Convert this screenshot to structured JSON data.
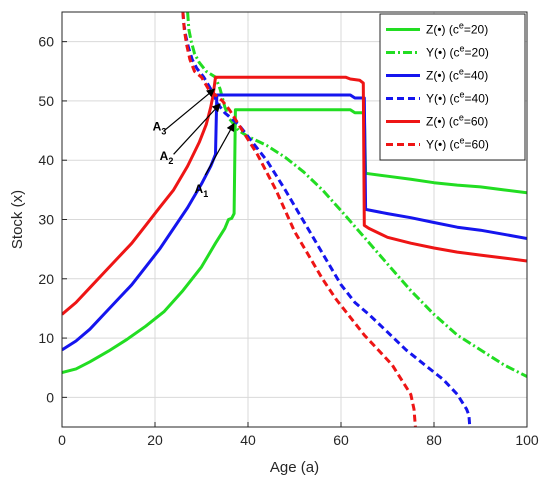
{
  "chart_data": {
    "type": "line",
    "xlabel": "Age (a)",
    "ylabel": "Stock (x)",
    "xlim": [
      0,
      100
    ],
    "ylim": [
      -5,
      65
    ],
    "xticks": [
      0,
      20,
      40,
      60,
      80,
      100
    ],
    "yticks": [
      0,
      10,
      20,
      30,
      40,
      50,
      60
    ],
    "grid": true,
    "legend_position": "top-right",
    "series": [
      {
        "legend": {
          "prefix": "Z(•) (c",
          "sup": "e",
          "suffix": "=20)"
        },
        "color": "#22dd22",
        "style": "solid",
        "points": [
          [
            0,
            4.2
          ],
          [
            3,
            4.8
          ],
          [
            6,
            6
          ],
          [
            10,
            7.8
          ],
          [
            14,
            9.8
          ],
          [
            18,
            12
          ],
          [
            22,
            14.5
          ],
          [
            26,
            18
          ],
          [
            30,
            22
          ],
          [
            33,
            26
          ],
          [
            35,
            28.5
          ],
          [
            35.8,
            30
          ],
          [
            36.5,
            30.2
          ],
          [
            37,
            31
          ],
          [
            37.3,
            48.5
          ],
          [
            45,
            48.5
          ],
          [
            55,
            48.5
          ],
          [
            62,
            48.5
          ],
          [
            63,
            48
          ],
          [
            65,
            48
          ],
          [
            65.3,
            37.8
          ],
          [
            70,
            37.3
          ],
          [
            75,
            36.8
          ],
          [
            80,
            36.2
          ],
          [
            85,
            35.8
          ],
          [
            90,
            35.5
          ],
          [
            95,
            35
          ],
          [
            100,
            34.5
          ]
        ]
      },
      {
        "legend": {
          "prefix": "Y(•) (c",
          "sup": "e",
          "suffix": "=20)"
        },
        "color": "#22dd22",
        "style": "dashdot",
        "points": [
          [
            27,
            65
          ],
          [
            27.3,
            62
          ],
          [
            27.8,
            60
          ],
          [
            28.5,
            58
          ],
          [
            29.5,
            56.5
          ],
          [
            31,
            55
          ],
          [
            33,
            54
          ],
          [
            34,
            52
          ],
          [
            35,
            49
          ],
          [
            36,
            47
          ],
          [
            37,
            46
          ],
          [
            38,
            45
          ],
          [
            40,
            44
          ],
          [
            44,
            42.5
          ],
          [
            48,
            40.5
          ],
          [
            52,
            38
          ],
          [
            56,
            35
          ],
          [
            60,
            31.5
          ],
          [
            65,
            27
          ],
          [
            70,
            22.5
          ],
          [
            75,
            18
          ],
          [
            80,
            14
          ],
          [
            85,
            10.5
          ],
          [
            90,
            8
          ],
          [
            95,
            5.5
          ],
          [
            100,
            3.5
          ]
        ]
      },
      {
        "legend": {
          "prefix": "Z(•) (c",
          "sup": "e",
          "suffix": "=40)"
        },
        "color": "#1515ee",
        "style": "solid",
        "points": [
          [
            0,
            8
          ],
          [
            3,
            9.5
          ],
          [
            6,
            11.5
          ],
          [
            9,
            14
          ],
          [
            12,
            16.5
          ],
          [
            15,
            19
          ],
          [
            18,
            22
          ],
          [
            21,
            25
          ],
          [
            24,
            28.5
          ],
          [
            27,
            32
          ],
          [
            30,
            36
          ],
          [
            32,
            39
          ],
          [
            33,
            41
          ],
          [
            33.3,
            51
          ],
          [
            45,
            51
          ],
          [
            55,
            51
          ],
          [
            62,
            51
          ],
          [
            63,
            50.5
          ],
          [
            65,
            50.5
          ],
          [
            65.3,
            31.7
          ],
          [
            70,
            31
          ],
          [
            75,
            30.3
          ],
          [
            80,
            29.5
          ],
          [
            85,
            28.7
          ],
          [
            90,
            28.2
          ],
          [
            95,
            27.5
          ],
          [
            100,
            26.8
          ]
        ]
      },
      {
        "legend": {
          "prefix": "Y(•) (c",
          "sup": "e",
          "suffix": "=40)"
        },
        "color": "#1515ee",
        "style": "dashed",
        "points": [
          [
            26,
            65
          ],
          [
            26.2,
            63
          ],
          [
            26.6,
            61
          ],
          [
            27.2,
            59
          ],
          [
            28,
            57
          ],
          [
            29,
            55.5
          ],
          [
            30.5,
            54
          ],
          [
            32,
            52
          ],
          [
            33.5,
            49.5
          ],
          [
            35,
            48
          ],
          [
            36.5,
            47
          ],
          [
            38,
            46
          ],
          [
            40,
            44
          ],
          [
            42,
            42
          ],
          [
            44,
            40
          ],
          [
            46,
            37.5
          ],
          [
            48,
            35
          ],
          [
            51,
            31
          ],
          [
            54,
            27
          ],
          [
            57,
            23
          ],
          [
            60,
            19
          ],
          [
            63,
            16
          ],
          [
            66,
            14
          ],
          [
            70,
            11
          ],
          [
            74,
            8
          ],
          [
            78,
            5.5
          ],
          [
            82,
            3
          ],
          [
            85,
            0.5
          ],
          [
            87,
            -2
          ],
          [
            87.5,
            -3
          ],
          [
            87.7,
            -5
          ]
        ]
      },
      {
        "legend": {
          "prefix": "Z(•) (c",
          "sup": "e",
          "suffix": "=60)"
        },
        "color": "#ee1515",
        "style": "solid",
        "points": [
          [
            0,
            14
          ],
          [
            3,
            16
          ],
          [
            6,
            18.5
          ],
          [
            9,
            21
          ],
          [
            12,
            23.5
          ],
          [
            15,
            26
          ],
          [
            18,
            29
          ],
          [
            21,
            32
          ],
          [
            24,
            35
          ],
          [
            27,
            39
          ],
          [
            29.5,
            43
          ],
          [
            31,
            46
          ],
          [
            32,
            49
          ],
          [
            32.5,
            51
          ],
          [
            33,
            54
          ],
          [
            45,
            54
          ],
          [
            55,
            54
          ],
          [
            61,
            54
          ],
          [
            62,
            53.7
          ],
          [
            64,
            53.5
          ],
          [
            64.8,
            53
          ],
          [
            65,
            29
          ],
          [
            66,
            28.5
          ],
          [
            70,
            27
          ],
          [
            75,
            26
          ],
          [
            80,
            25.2
          ],
          [
            85,
            24.5
          ],
          [
            90,
            24
          ],
          [
            95,
            23.5
          ],
          [
            100,
            23
          ]
        ]
      },
      {
        "legend": {
          "prefix": "Y(•) (c",
          "sup": "e",
          "suffix": "=60)"
        },
        "color": "#ee1515",
        "style": "dashed",
        "points": [
          [
            26,
            65
          ],
          [
            26.3,
            62
          ],
          [
            26.8,
            59.5
          ],
          [
            27.5,
            57
          ],
          [
            28.5,
            55
          ],
          [
            30,
            54
          ],
          [
            31.5,
            52
          ],
          [
            33,
            51
          ],
          [
            34.5,
            50
          ],
          [
            36,
            48.5
          ],
          [
            38,
            46
          ],
          [
            40,
            43.5
          ],
          [
            42,
            41
          ],
          [
            44,
            38
          ],
          [
            46,
            35
          ],
          [
            48,
            31.5
          ],
          [
            50,
            28
          ],
          [
            53,
            24
          ],
          [
            56,
            20
          ],
          [
            59,
            16.5
          ],
          [
            62,
            13.5
          ],
          [
            65,
            10.5
          ],
          [
            68,
            8
          ],
          [
            71,
            5.5
          ],
          [
            73,
            3
          ],
          [
            75,
            0.5
          ],
          [
            75.7,
            -2
          ],
          [
            76,
            -5
          ]
        ]
      }
    ],
    "annotations": [
      {
        "text": "A",
        "sub": "3",
        "pos": [
          19.5,
          45
        ],
        "arrow_from": [
          22,
          45
        ],
        "arrow_to": [
          32.8,
          52
        ]
      },
      {
        "text": "A",
        "sub": "2",
        "pos": [
          21,
          40
        ],
        "arrow_from": [
          24,
          41
        ],
        "arrow_to": [
          34,
          49.5
        ]
      },
      {
        "text": "A",
        "sub": "1",
        "pos": [
          28.5,
          34.5
        ],
        "arrow_from": [
          30.8,
          37.5
        ],
        "arrow_to": [
          37,
          46.2
        ]
      }
    ]
  }
}
